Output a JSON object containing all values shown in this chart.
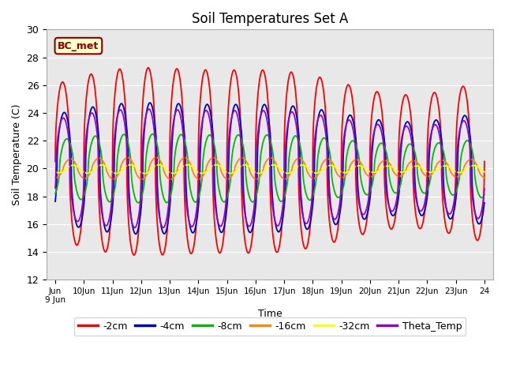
{
  "title": "Soil Temperatures Set A",
  "xlabel": "Time",
  "ylabel": "Soil Temperature (C)",
  "ylim": [
    12,
    30
  ],
  "background_color": "#e8e8e8",
  "annotation_text": "BC_met",
  "annotation_bg": "#ffffcc",
  "annotation_border": "#8B0000",
  "series": {
    "-2cm": {
      "color": "#ff0000",
      "amplitude": 6.0,
      "phase": 0.0,
      "mean": 20.5,
      "depth_factor": 1.0
    },
    "-4cm": {
      "color": "#0000cc",
      "amplitude": 4.2,
      "phase": 0.12,
      "mean": 20.0,
      "depth_factor": 0.85
    },
    "-8cm": {
      "color": "#00bb00",
      "amplitude": 2.2,
      "phase": 0.3,
      "mean": 20.0,
      "depth_factor": 0.6
    },
    "-16cm": {
      "color": "#ff8800",
      "amplitude": 0.7,
      "phase": 0.55,
      "mean": 20.0,
      "depth_factor": 0.3
    },
    "-32cm": {
      "color": "#ffff00",
      "amplitude": 0.28,
      "phase": 0.75,
      "mean": 19.95,
      "depth_factor": 0.1
    },
    "Theta_Temp": {
      "color": "#9900cc",
      "amplitude": 3.8,
      "phase": 0.05,
      "mean": 20.0,
      "depth_factor": 0.85
    }
  },
  "legend_order": [
    "-2cm",
    "-4cm",
    "-8cm",
    "-16cm",
    "-32cm",
    "Theta_Temp"
  ],
  "line_width": 1.3
}
